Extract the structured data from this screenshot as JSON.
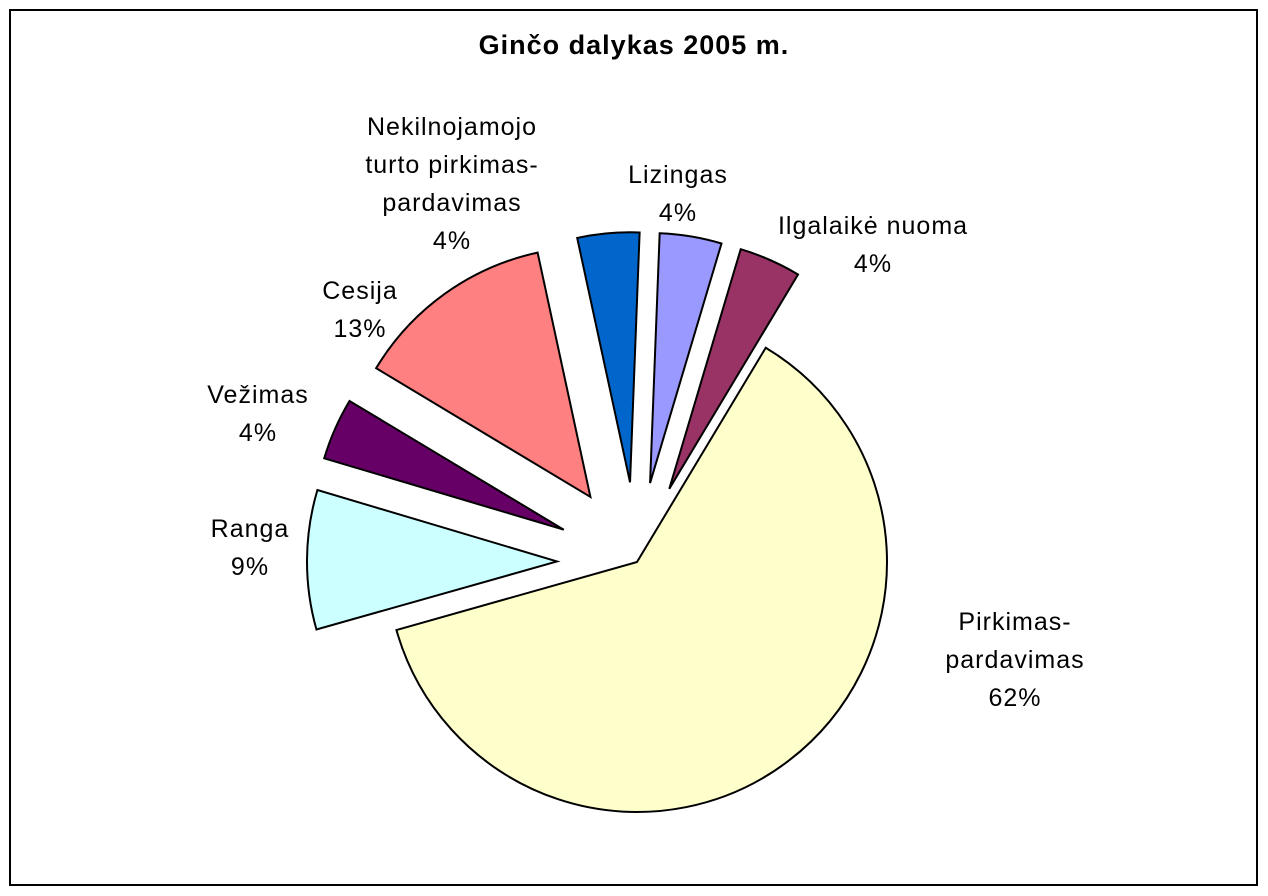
{
  "chart_data": {
    "type": "pie",
    "title": "Ginčo dalykas 2005 m.",
    "categories": [
      "Pirkimas-pardavimas",
      "Ranga",
      "Vežimas",
      "Cesija",
      "Nekilnojamojo turto pirkimas-pardavimas",
      "Lizingas",
      "Ilgalaikė nuoma"
    ],
    "values": [
      62,
      9,
      4,
      13,
      4,
      4,
      4
    ],
    "value_labels": [
      "62%",
      "9%",
      "4%",
      "13%",
      "4%",
      "4%",
      "4%"
    ],
    "colors": [
      "#ffffcc",
      "#ccffff",
      "#660066",
      "#ff8080",
      "#0066cc",
      "#9999ff",
      "#993366"
    ]
  }
}
